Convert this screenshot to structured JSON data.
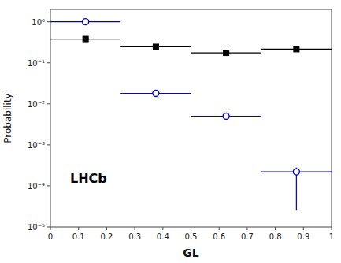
{
  "chart_data": {
    "type": "scatter",
    "xlabel": "GL",
    "ylabel": "Probability",
    "log": "y",
    "grid": false,
    "xlim": [
      0.0,
      1.0
    ],
    "ylim": [
      1e-05,
      2.0
    ],
    "xticks": [
      0,
      0.1,
      0.2,
      0.3,
      0.4,
      0.5,
      0.6,
      0.7,
      0.8,
      0.9,
      1
    ],
    "yticks": [
      {
        "value": 1e-05,
        "label": "10⁻⁵"
      },
      {
        "value": 0.0001,
        "label": "10⁻⁴"
      },
      {
        "value": 0.001,
        "label": "10⁻³"
      },
      {
        "value": 0.01,
        "label": "10⁻²"
      },
      {
        "value": 0.1,
        "label": "10⁻¹"
      },
      {
        "value": 1,
        "label": "10⁰"
      }
    ],
    "annotations": [
      {
        "text": "LHCb",
        "x": 0.07,
        "y": 0.00012
      }
    ],
    "series": [
      {
        "color": "#000000",
        "marker": "square",
        "x": [
          0.125,
          0.375,
          0.625,
          0.875
        ],
        "values": [
          0.38,
          0.245,
          0.175,
          0.215
        ],
        "x_err": [
          0.125,
          0.125,
          0.125,
          0.125
        ],
        "y_err_lo": [
          0.05,
          0.03,
          0.015,
          0.015
        ],
        "y_err_hi": [
          0.05,
          0.03,
          0.015,
          0.015
        ]
      },
      {
        "color": "#0000cc",
        "marker": "open-circle",
        "x": [
          0.125,
          0.375,
          0.625,
          0.875
        ],
        "values": [
          1.0,
          0.018,
          0.005,
          0.00022
        ],
        "x_err": [
          0.125,
          0.125,
          0.125,
          0.125
        ],
        "y_err_lo": [
          0.0,
          0.003,
          0.0008,
          0.000195
        ],
        "y_err_hi": [
          0.0,
          0.003,
          0.0008,
          6e-05
        ]
      }
    ]
  }
}
